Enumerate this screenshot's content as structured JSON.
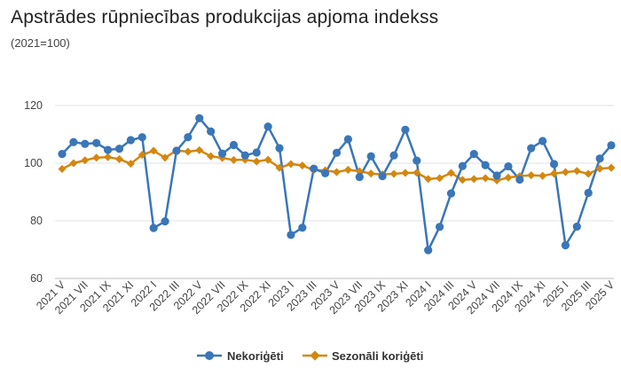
{
  "chart_data": {
    "type": "line",
    "title": "Apstrādes rūpniecības produkcijas apjoma indekss",
    "subtitle": "(2021=100)",
    "xlabel": "",
    "ylabel": "",
    "ylim": [
      60,
      120
    ],
    "yticks": [
      "60",
      "80",
      "100",
      "120"
    ],
    "grid": true,
    "legend_position": "bottom",
    "x": [
      "2021 V",
      "2021 VI",
      "2021 VII",
      "2021 VIII",
      "2021 IX",
      "2021 X",
      "2021 XI",
      "2021 XII",
      "2022 I",
      "2022 II",
      "2022 III",
      "2022 IV",
      "2022 V",
      "2022 VI",
      "2022 VII",
      "2022 VIII",
      "2022 IX",
      "2022 X",
      "2022 XI",
      "2022 XII",
      "2023 I",
      "2023 II",
      "2023 III",
      "2023 IV",
      "2023 V",
      "2023 VI",
      "2023 VII",
      "2023 VIII",
      "2023 IX",
      "2023 X",
      "2023 XI",
      "2023 XII",
      "2024 I",
      "2024 II",
      "2024 III",
      "2024 IV",
      "2024 V",
      "2024 VI",
      "2024 VII",
      "2024 VIII",
      "2024 IX",
      "2024 X",
      "2024 XI",
      "2024 XII",
      "2025 I",
      "2025 II",
      "2025 III",
      "2025 IV",
      "2025 V"
    ],
    "xtick_labels": [
      "2021 V",
      "2021 VII",
      "2021 IX",
      "2021 XI",
      "2022 I",
      "2022 III",
      "2022 V",
      "2022 VII",
      "2022 IX",
      "2022 XI",
      "2023 I",
      "2023 III",
      "2023 V",
      "2023 VII",
      "2023 IX",
      "2023 XI",
      "2024 I",
      "2024 III",
      "2024 V",
      "2024 VII",
      "2024 IX",
      "2024 XI",
      "2025 I",
      "2025 III",
      "2025 V"
    ],
    "series": [
      {
        "name": "Nekoriģēti",
        "color": "#3a76b8",
        "marker": "circle",
        "values": [
          103.2,
          107.3,
          106.7,
          107.0,
          104.6,
          105.0,
          108.0,
          109.0,
          77.5,
          79.8,
          104.3,
          109.0,
          115.6,
          111.0,
          103.3,
          106.3,
          102.7,
          103.7,
          112.7,
          105.2,
          75.1,
          77.6,
          98.1,
          96.5,
          103.6,
          108.3,
          95.2,
          102.4,
          95.5,
          102.7,
          111.6,
          100.9,
          69.8,
          77.9,
          89.5,
          99.0,
          103.2,
          99.3,
          95.7,
          98.9,
          94.3,
          105.2,
          107.7,
          99.7,
          71.5,
          78.0,
          89.7,
          101.6,
          106.2
        ]
      },
      {
        "name": "Sezonāli koriģēti",
        "color": "#d4870f",
        "marker": "diamond",
        "values": [
          98.0,
          100.0,
          101.0,
          101.9,
          102.1,
          101.4,
          99.8,
          102.9,
          104.3,
          101.9,
          104.4,
          104.0,
          104.5,
          102.4,
          101.8,
          101.1,
          101.2,
          100.6,
          101.2,
          98.4,
          99.7,
          99.2,
          97.6,
          97.5,
          96.9,
          97.7,
          97.2,
          96.4,
          96.1,
          96.3,
          96.6,
          96.7,
          94.5,
          94.8,
          96.6,
          94.2,
          94.5,
          94.8,
          94.0,
          95.0,
          95.5,
          95.8,
          95.6,
          96.4,
          96.9,
          97.3,
          96.3,
          98.1,
          98.4
        ]
      }
    ]
  }
}
